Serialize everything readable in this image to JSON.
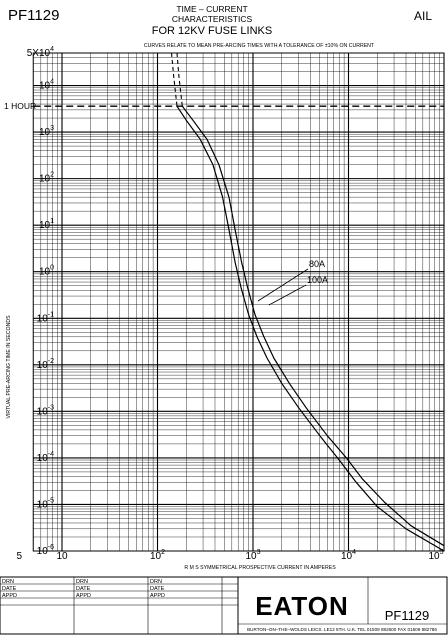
{
  "header": {
    "code_left": "PF1129",
    "title_lines": [
      "TIME – CURRENT",
      "CHARACTERISTICS",
      "FOR 12KV FUSE LINKS"
    ],
    "maker_right": "AIL",
    "note": "CURVES RELATE TO MEAN PRE-ARCING TIMES WITH A TOLERANCE OF ±10% ON CURRENT"
  },
  "chart_data": {
    "type": "line",
    "title": "TIME – CURRENT CHARACTERISTICS FOR 12KV FUSE LINKS",
    "subtitle": "CURVES RELATE TO MEAN PRE-ARCING TIMES WITH A TOLERANCE OF ±10% ON CURRENT",
    "xlabel": "R M S SYMMETRICAL PROSPECTIVE CURRENT IN AMPERES",
    "ylabel": "VIRTUAL PRE-ARCING TIME IN SECONDS",
    "x_scale": "log",
    "y_scale": "log",
    "xlim": [
      5,
      100000
    ],
    "ylim": [
      1e-06,
      50000
    ],
    "grid": true,
    "x_ticks": [
      {
        "v": 5,
        "base": "5",
        "exp": ""
      },
      {
        "v": 10,
        "base": "10",
        "exp": ""
      },
      {
        "v": 100,
        "base": "10",
        "exp": "2"
      },
      {
        "v": 1000,
        "base": "10",
        "exp": "3"
      },
      {
        "v": 10000,
        "base": "10",
        "exp": "4"
      },
      {
        "v": 100000,
        "base": "10",
        "exp": "5"
      }
    ],
    "y_ticks": [
      {
        "v": 50000,
        "base": "5X10",
        "exp": "4"
      },
      {
        "v": 10000,
        "base": "10",
        "exp": "4"
      },
      {
        "v": 1000,
        "base": "10",
        "exp": "3"
      },
      {
        "v": 100,
        "base": "10",
        "exp": "2"
      },
      {
        "v": 10,
        "base": "10",
        "exp": "1"
      },
      {
        "v": 1,
        "base": "10",
        "exp": "0"
      },
      {
        "v": 0.1,
        "base": "10",
        "exp": "-1"
      },
      {
        "v": 0.01,
        "base": "10",
        "exp": "-2"
      },
      {
        "v": 0.001,
        "base": "10",
        "exp": "-3"
      },
      {
        "v": 0.0001,
        "base": "10",
        "exp": "-4"
      },
      {
        "v": 1e-05,
        "base": "10",
        "exp": "-5"
      },
      {
        "v": 1e-06,
        "base": "10",
        "exp": "-6"
      }
    ],
    "reference_line": {
      "label": "1 HOUR",
      "y": 3600
    },
    "series": [
      {
        "name": "80A",
        "dashed_x": [
          140,
          148,
          160
        ],
        "dashed_y": [
          50000,
          15000,
          3600
        ],
        "x": [
          160,
          200,
          280,
          380,
          480,
          560,
          650,
          750,
          900,
          1100,
          1400,
          2000,
          3000,
          5000,
          8000,
          12000,
          20000,
          40000,
          100000
        ],
        "y": [
          3600,
          1800,
          700,
          200,
          40,
          8,
          1.6,
          0.45,
          0.12,
          0.04,
          0.014,
          0.004,
          0.0012,
          0.0003,
          9e-05,
          3e-05,
          9e-06,
          3e-06,
          1e-06
        ]
      },
      {
        "name": "100A",
        "dashed_x": [
          160,
          168,
          182
        ],
        "dashed_y": [
          50000,
          15000,
          3600
        ],
        "x": [
          182,
          235,
          330,
          440,
          560,
          650,
          760,
          880,
          1050,
          1300,
          1650,
          2400,
          3600,
          6000,
          9500,
          14000,
          24000,
          45000,
          100000
        ],
        "y": [
          3600,
          1800,
          700,
          200,
          40,
          8,
          1.6,
          0.45,
          0.12,
          0.04,
          0.014,
          0.004,
          0.0012,
          0.0003,
          0.0001,
          3.5e-05,
          1.1e-05,
          3.5e-06,
          1.3e-06
        ]
      }
    ]
  },
  "title_block": {
    "rows": [
      "DRN",
      "DATE",
      "APPD"
    ],
    "company": "EATON",
    "drawing_no": "PF1129",
    "address": "BURTON–ON–THE–WOLDS LEICS. LE12 5TH. U.K. TEL 01509 882600 FAX 01509 882786"
  }
}
